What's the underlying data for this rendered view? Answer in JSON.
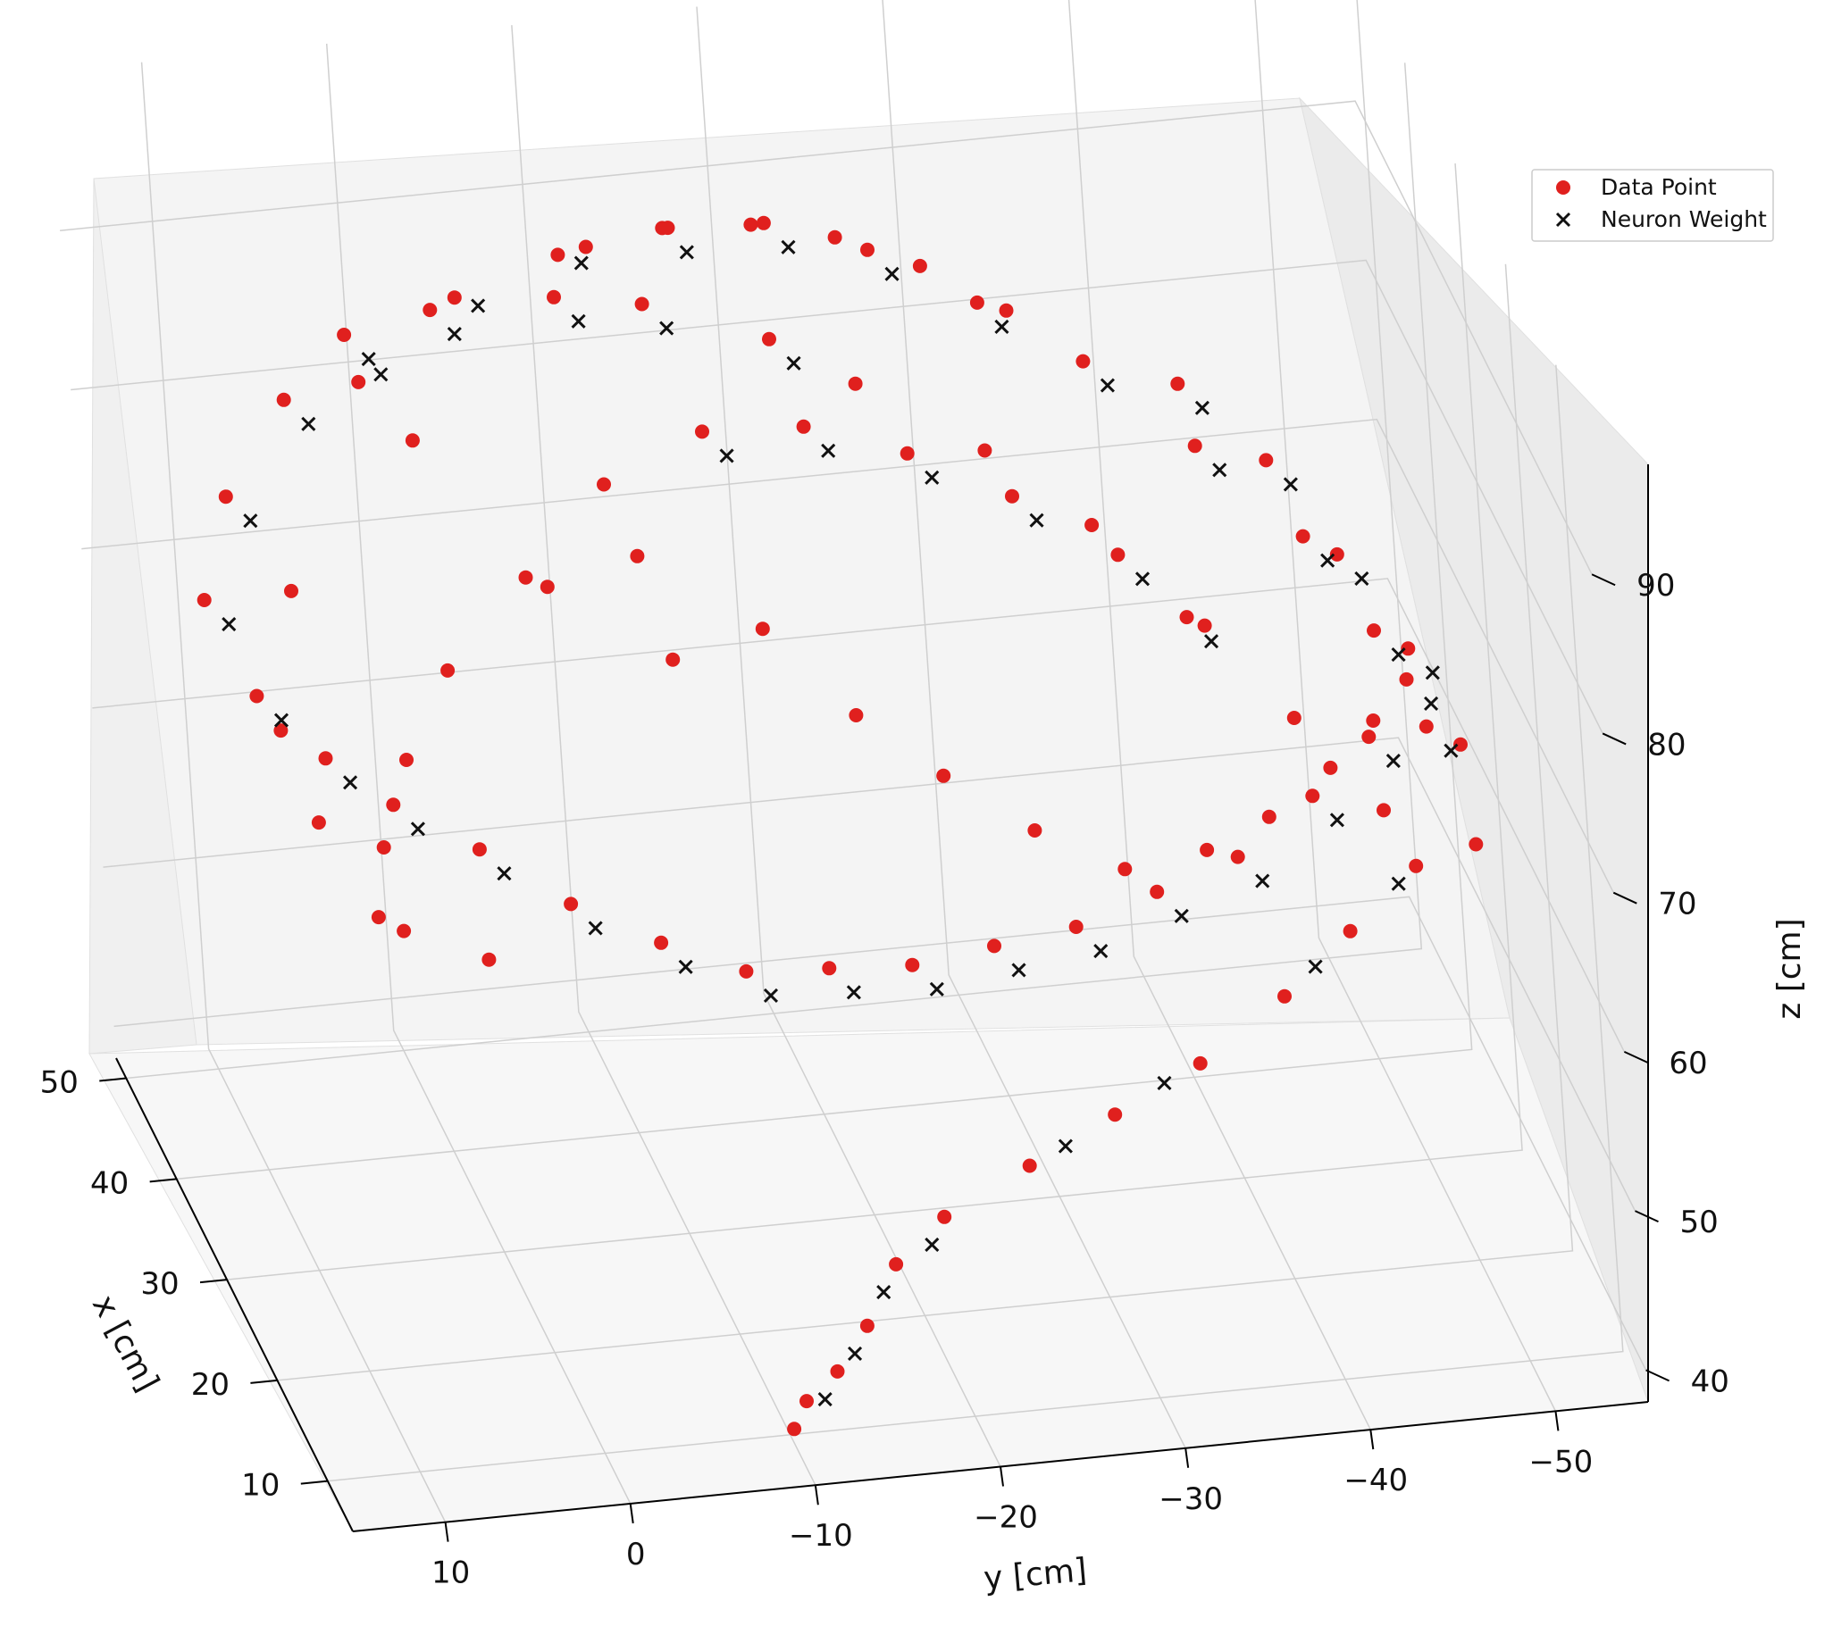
{
  "chart_data": {
    "type": "scatter",
    "projection": "3d",
    "title": "",
    "xlabel": "x [cm]",
    "ylabel": "y [cm]",
    "zlabel": "z [cm]",
    "xlim": [
      5,
      52
    ],
    "ylim": [
      15,
      -55
    ],
    "zlim": [
      38,
      100
    ],
    "xticks": [
      50,
      40,
      30,
      20,
      10
    ],
    "yticks": [
      10,
      0,
      -10,
      -20,
      -30,
      -40,
      -50
    ],
    "zticks": [
      40,
      50,
      60,
      70,
      80,
      90
    ],
    "grid": true,
    "legend_position": "top-right",
    "series": [
      {
        "name": "Data Point",
        "marker": "circle",
        "color": "#e0201e",
        "points": [
          [
            50,
            0,
            80
          ],
          [
            48,
            -5,
            86
          ],
          [
            45,
            -10,
            90
          ],
          [
            42,
            -15,
            93
          ],
          [
            40,
            -20,
            94
          ],
          [
            38,
            -25,
            93
          ],
          [
            35,
            -30,
            91
          ],
          [
            33,
            -35,
            88
          ],
          [
            30,
            -40,
            84
          ],
          [
            28,
            -45,
            79
          ],
          [
            26,
            -48,
            74
          ],
          [
            24,
            -50,
            69
          ],
          [
            46,
            5,
            82
          ],
          [
            44,
            2,
            87
          ],
          [
            41,
            -2,
            90
          ],
          [
            38,
            -8,
            92
          ],
          [
            35,
            -12,
            93
          ],
          [
            32,
            -18,
            92
          ],
          [
            30,
            -22,
            90
          ],
          [
            27,
            -28,
            87
          ],
          [
            25,
            -33,
            83
          ],
          [
            22,
            -38,
            78
          ],
          [
            20,
            -42,
            73
          ],
          [
            18,
            -46,
            68
          ],
          [
            48,
            8,
            75
          ],
          [
            46,
            10,
            70
          ],
          [
            44,
            8,
            65
          ],
          [
            42,
            5,
            62
          ],
          [
            40,
            2,
            60
          ],
          [
            38,
            -2,
            58
          ],
          [
            35,
            -6,
            56
          ],
          [
            32,
            -10,
            55
          ],
          [
            30,
            -14,
            54
          ],
          [
            28,
            -18,
            55
          ],
          [
            26,
            -22,
            56
          ],
          [
            24,
            -26,
            58
          ],
          [
            22,
            -30,
            60
          ],
          [
            20,
            -34,
            63
          ],
          [
            18,
            -38,
            66
          ],
          [
            17,
            -42,
            70
          ],
          [
            16,
            -45,
            74
          ],
          [
            15,
            -47,
            78
          ],
          [
            36,
            -15,
            84
          ],
          [
            34,
            -20,
            85
          ],
          [
            32,
            -25,
            84
          ],
          [
            30,
            -30,
            82
          ],
          [
            28,
            -35,
            79
          ],
          [
            26,
            -38,
            76
          ],
          [
            38,
            -10,
            80
          ],
          [
            36,
            -5,
            76
          ],
          [
            34,
            0,
            72
          ],
          [
            32,
            3,
            68
          ],
          [
            30,
            5,
            64
          ],
          [
            28,
            6,
            61
          ],
          [
            40,
            -12,
            74
          ],
          [
            38,
            -18,
            70
          ],
          [
            35,
            -22,
            66
          ],
          [
            33,
            -26,
            63
          ],
          [
            30,
            -30,
            61
          ],
          [
            27,
            -34,
            60
          ],
          [
            25,
            -38,
            62
          ],
          [
            23,
            -41,
            65
          ],
          [
            21,
            -44,
            69
          ],
          [
            19,
            -46,
            73
          ],
          [
            44,
            -8,
            70
          ],
          [
            42,
            -14,
            66
          ],
          [
            14,
            -20,
            48
          ],
          [
            13,
            -17,
            46
          ],
          [
            12,
            -15,
            43
          ],
          [
            11,
            -13,
            41
          ],
          [
            10,
            -11,
            40
          ],
          [
            9,
            -10,
            39
          ],
          [
            15,
            -25,
            50
          ],
          [
            16,
            -30,
            52
          ],
          [
            17,
            -35,
            54
          ],
          [
            18,
            -40,
            57
          ],
          [
            19,
            -44,
            60
          ],
          [
            20,
            -48,
            63
          ],
          [
            47,
            -2,
            78
          ],
          [
            43,
            6,
            72
          ],
          [
            39,
            8,
            66
          ],
          [
            36,
            7,
            62
          ],
          [
            31,
            4,
            58
          ],
          [
            29,
            0,
            57
          ],
          [
            33,
            -40,
            86
          ],
          [
            31,
            -44,
            82
          ],
          [
            29,
            -47,
            77
          ],
          [
            27,
            -50,
            72
          ],
          [
            25,
            -52,
            67
          ],
          [
            23,
            -52,
            62
          ],
          [
            37,
            -32,
            89
          ],
          [
            39,
            -28,
            91
          ],
          [
            41,
            -24,
            92
          ],
          [
            43,
            -20,
            92
          ],
          [
            45,
            -16,
            91
          ],
          [
            47,
            -12,
            89
          ]
        ]
      },
      {
        "name": "Neuron Weight",
        "marker": "x",
        "color": "#111111",
        "points": [
          [
            49,
            -1,
            81
          ],
          [
            47,
            -6,
            86
          ],
          [
            44,
            -11,
            90
          ],
          [
            41,
            -16,
            92
          ],
          [
            39,
            -21,
            93
          ],
          [
            37,
            -26,
            92
          ],
          [
            34,
            -31,
            90
          ],
          [
            32,
            -36,
            87
          ],
          [
            29,
            -41,
            83
          ],
          [
            27,
            -46,
            78
          ],
          [
            25,
            -49,
            73
          ],
          [
            23,
            -51,
            68
          ],
          [
            45,
            4,
            81
          ],
          [
            43,
            1,
            86
          ],
          [
            40,
            -3,
            89
          ],
          [
            37,
            -9,
            91
          ],
          [
            34,
            -13,
            92
          ],
          [
            31,
            -19,
            91
          ],
          [
            47,
            7,
            74
          ],
          [
            45,
            9,
            69
          ],
          [
            43,
            7,
            64
          ],
          [
            41,
            4,
            61
          ],
          [
            39,
            1,
            59
          ],
          [
            37,
            -3,
            57
          ],
          [
            34,
            -7,
            55
          ],
          [
            31,
            -11,
            54
          ],
          [
            29,
            -15,
            53
          ],
          [
            27,
            -19,
            54
          ],
          [
            25,
            -23,
            55
          ],
          [
            23,
            -27,
            57
          ],
          [
            21,
            -31,
            59
          ],
          [
            19,
            -35,
            62
          ],
          [
            17,
            -39,
            65
          ],
          [
            16,
            -43,
            69
          ],
          [
            15,
            -46,
            73
          ],
          [
            14,
            -48,
            77
          ],
          [
            35,
            -16,
            83
          ],
          [
            33,
            -21,
            84
          ],
          [
            31,
            -26,
            83
          ],
          [
            29,
            -31,
            81
          ],
          [
            27,
            -36,
            78
          ],
          [
            25,
            -39,
            75
          ],
          [
            13,
            -19,
            47
          ],
          [
            12,
            -16,
            45
          ],
          [
            11,
            -14,
            42
          ],
          [
            10,
            -12,
            40
          ],
          [
            15,
            -27,
            51
          ],
          [
            17,
            -33,
            53
          ],
          [
            19,
            -42,
            58
          ],
          [
            20,
            -47,
            62
          ],
          [
            32,
            -41,
            85
          ],
          [
            30,
            -45,
            81
          ],
          [
            28,
            -48,
            76
          ],
          [
            26,
            -51,
            71
          ]
        ]
      }
    ]
  }
}
